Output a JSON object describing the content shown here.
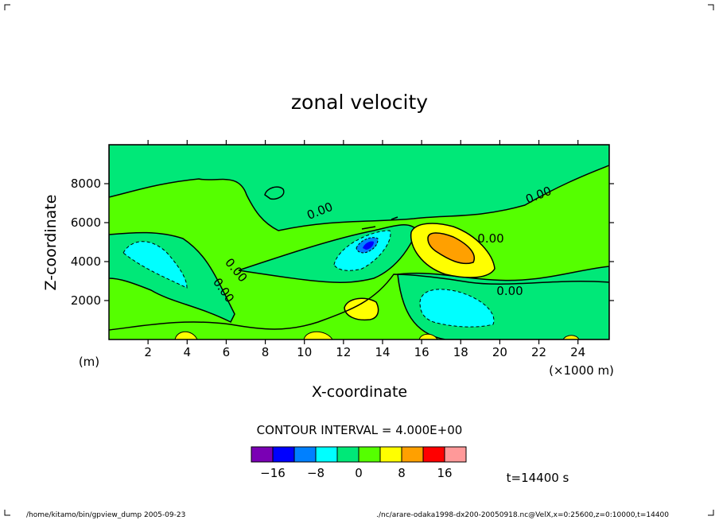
{
  "chart_data": {
    "type": "contour",
    "title": "zonal velocity",
    "xlabel": "X-coordinate",
    "ylabel": "Z-coordinate",
    "x_unit_label": "(×1000 m)",
    "y_unit_label": "(m)",
    "xlim": [
      0,
      25.6
    ],
    "ylim": [
      0,
      10000
    ],
    "xticks": [
      2,
      4,
      6,
      8,
      10,
      12,
      14,
      16,
      18,
      20,
      22,
      24
    ],
    "yticks": [
      2000,
      4000,
      6000,
      8000
    ],
    "contour_labels": [
      "0.00",
      "0.00",
      "0.00",
      "0.00",
      "0.00",
      "0.00",
      "0.00"
    ],
    "contour_interval_text": "CONTOUR INTERVAL = 4.000E+00",
    "colorbar": {
      "colors": [
        "#7a00b4",
        "#0000ff",
        "#0080ff",
        "#00ffff",
        "#00e878",
        "#55ff00",
        "#ffff00",
        "#ffa000",
        "#ff0000",
        "#ff9999"
      ],
      "tick_labels": [
        "−16",
        "−8",
        "0",
        "8",
        "16"
      ]
    },
    "features": [
      {
        "x": 17.5,
        "z": 4500,
        "value_range": [
          12,
          16
        ]
      },
      {
        "x": 13.0,
        "z": 4700,
        "value_range": [
          -16,
          -12
        ]
      },
      {
        "x": 17.8,
        "z": 1500,
        "value_range": [
          -8,
          -4
        ]
      },
      {
        "x": 2.5,
        "z": 3800,
        "value_range": [
          -8,
          -4
        ]
      },
      {
        "x": 12.7,
        "z": 1500,
        "value_range": [
          4,
          8
        ]
      }
    ],
    "time_label": "t=14400 s"
  },
  "footer": {
    "left": "/home/kitamo/bin/gpview_dump  2005-09-23",
    "right": "./nc/arare-odaka1998-dx200-20050918.nc@VelX,x=0:25600,z=0:10000,t=14400"
  }
}
